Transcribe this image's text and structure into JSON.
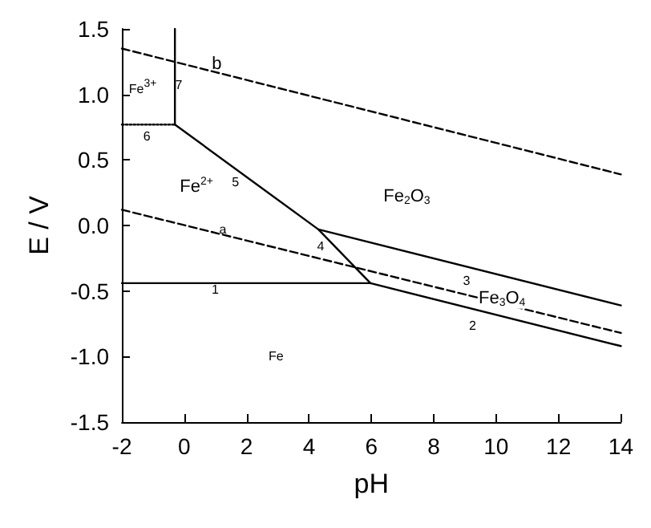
{
  "chart_data": {
    "type": "line",
    "xlabel": "pH",
    "ylabel": "E / V",
    "marker": "none",
    "xlim": [
      -2,
      14
    ],
    "xticks": [
      -2,
      0,
      2,
      4,
      6,
      8,
      10,
      12,
      14
    ],
    "ylim": [
      -1.5,
      1.5
    ],
    "yticks": [
      -1.5,
      {
        "value": -1.0,
        "label": "-1.0"
      },
      -0.5,
      {
        "value": 0.0,
        "label": "0.0"
      },
      0.5,
      {
        "value": 1.0,
        "label": "1.0"
      },
      1.5
    ],
    "series": [
      {
        "color": "#000000",
        "line_style": "dashed",
        "x": [
          -2,
          14
        ],
        "values": [
          1.35,
          0.39
        ]
      },
      {
        "color": "#000000",
        "line_style": "dashed",
        "x": [
          -2,
          14
        ],
        "values": [
          0.12,
          -0.82
        ]
      },
      {
        "color": "#000000",
        "line_style": "solid",
        "x": [
          -0.3,
          -0.3
        ],
        "values": [
          0.77,
          1.5
        ]
      },
      {
        "color": "#000000",
        "line_style": "dotted",
        "x": [
          -2,
          -0.3
        ],
        "values": [
          0.77,
          0.77
        ]
      },
      {
        "color": "#000000",
        "line_style": "solid",
        "x": [
          -0.3,
          4.3,
          5.97
        ],
        "values": [
          0.77,
          -0.03,
          -0.44
        ]
      },
      {
        "color": "#000000",
        "line_style": "solid",
        "x": [
          4.3,
          14
        ],
        "values": [
          -0.03,
          -0.61
        ]
      },
      {
        "color": "#000000",
        "line_style": "solid",
        "x": [
          -2,
          5.97,
          14
        ],
        "values": [
          -0.44,
          -0.44,
          -0.92
        ]
      }
    ],
    "annotations": [
      "b",
      "7",
      "Fe$^{3+}$",
      "6",
      "5",
      "Fe$^{2+}$",
      "Fe$_{2}$O$_{3}$",
      "a",
      "4",
      "3",
      "Fe$_{3}$O$_{4}$",
      "2",
      "1",
      "Fe"
    ]
  }
}
